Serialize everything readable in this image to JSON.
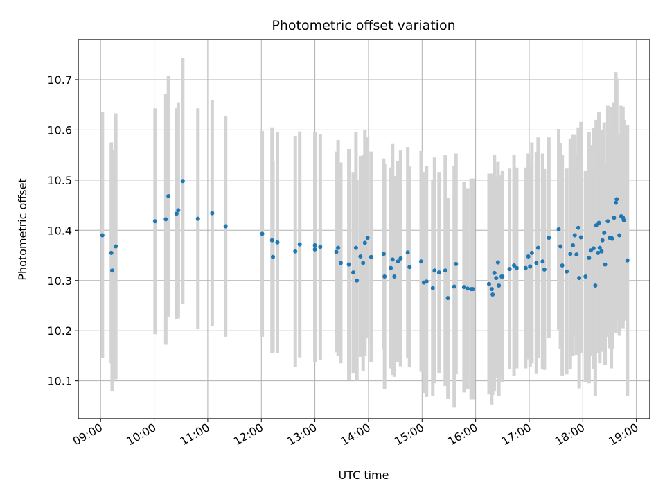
{
  "chart_data": {
    "type": "scatter",
    "title": "Photometric offset variation",
    "xlabel": "UTC time",
    "ylabel": "Photometric offset",
    "xlim": [
      "08:35",
      "19:15"
    ],
    "ylim": [
      10.025,
      10.78
    ],
    "x_ticks": [
      "09:00",
      "10:00",
      "11:00",
      "12:00",
      "13:00",
      "14:00",
      "15:00",
      "16:00",
      "17:00",
      "18:00",
      "19:00"
    ],
    "y_ticks": [
      10.1,
      10.2,
      10.3,
      10.4,
      10.5,
      10.6,
      10.7
    ],
    "grid": true,
    "colors": {
      "point": "#1f77b4",
      "errorbar": "#d3d3d3",
      "grid": "#b0b0b0"
    },
    "series": [
      {
        "x": [
          "09:02",
          "09:12",
          "09:13",
          "09:17",
          "10:01",
          "10:13",
          "10:16",
          "10:25",
          "10:27",
          "10:32",
          "10:49",
          "11:05",
          "11:20",
          "12:01",
          "12:12",
          "12:13",
          "12:18",
          "12:38",
          "12:43",
          "13:00",
          "13:00",
          "13:06",
          "13:24",
          "13:26",
          "13:29",
          "13:38",
          "13:43",
          "13:46",
          "13:47",
          "13:51",
          "13:54",
          "13:56",
          "13:59",
          "14:03",
          "14:17",
          "14:18",
          "14:25",
          "14:27",
          "14:29",
          "14:33",
          "14:36",
          "14:44",
          "14:46",
          "14:59",
          "15:02",
          "15:05",
          "15:12",
          "15:14",
          "15:19",
          "15:26",
          "15:29",
          "15:36",
          "15:38",
          "15:47",
          "15:51",
          "15:55",
          "15:57",
          "16:15",
          "16:18",
          "16:19",
          "16:21",
          "16:23",
          "16:25",
          "16:26",
          "16:29",
          "16:30",
          "16:38",
          "16:43",
          "16:46",
          "16:56",
          "16:59",
          "17:01",
          "17:03",
          "17:08",
          "17:10",
          "17:15",
          "17:17",
          "17:22",
          "17:33",
          "17:35",
          "17:37",
          "17:42",
          "17:46",
          "17:49",
          "17:51",
          "17:53",
          "17:55",
          "17:56",
          "17:58",
          "18:03",
          "18:07",
          "18:09",
          "18:12",
          "18:14",
          "18:15",
          "18:17",
          "18:18",
          "18:19",
          "18:21",
          "18:22",
          "18:24",
          "18:25",
          "18:28",
          "18:30",
          "18:32",
          "18:33",
          "18:35",
          "18:37",
          "18:38",
          "18:41",
          "18:43",
          "18:45",
          "18:46"
        ],
        "y": [
          10.39,
          10.355,
          10.32,
          10.368,
          10.418,
          10.422,
          10.468,
          10.433,
          10.44,
          10.498,
          10.423,
          10.434,
          10.408,
          10.393,
          10.38,
          10.347,
          10.376,
          10.358,
          10.372,
          10.362,
          10.37,
          10.367,
          10.357,
          10.365,
          10.335,
          10.332,
          10.316,
          10.365,
          10.3,
          10.348,
          10.335,
          10.375,
          10.385,
          10.347,
          10.353,
          10.308,
          10.325,
          10.342,
          10.308,
          10.338,
          10.344,
          10.356,
          10.327,
          10.338,
          10.296,
          10.298,
          10.285,
          10.32,
          10.316,
          10.32,
          10.265,
          10.288,
          10.333,
          10.287,
          10.284,
          10.283,
          10.283,
          10.293,
          10.283,
          10.272,
          10.315,
          10.305,
          10.336,
          10.29,
          10.308,
          10.308,
          10.323,
          10.33,
          10.325,
          10.325,
          10.348,
          10.328,
          10.355,
          10.335,
          10.365,
          10.338,
          10.322,
          10.385,
          10.402,
          10.368,
          10.33,
          10.318,
          10.353,
          10.37,
          10.39,
          10.352,
          10.405,
          10.305,
          10.386,
          10.308,
          10.345,
          10.36,
          10.364,
          10.29,
          10.41,
          10.355,
          10.415,
          10.365,
          10.358,
          10.38,
          10.395,
          10.332,
          10.418,
          10.385,
          10.385,
          10.383,
          10.425,
          10.455,
          10.462,
          10.39,
          10.428,
          10.425,
          10.42
        ],
        "yerr": [
          0.245,
          0.22,
          0.24,
          0.265,
          0.225,
          0.25,
          0.24,
          0.21,
          0.215,
          0.245,
          0.22,
          0.225,
          0.22,
          0.205,
          0.225,
          0.19,
          0.22,
          0.23,
          0.225,
          0.225,
          0.225,
          0.225,
          0.2,
          0.215,
          0.2,
          0.23,
          0.2,
          0.23,
          0.2,
          0.2,
          0.215,
          0.225,
          0.2,
          0.21,
          0.19,
          0.225,
          0.2,
          0.23,
          0.2,
          0.2,
          0.215,
          0.21,
          0.2,
          0.22,
          0.22,
          0.23,
          0.215,
          0.225,
          0.2,
          0.23,
          0.2,
          0.24,
          0.22,
          0.21,
          0.2,
          0.22,
          0.22,
          0.22,
          0.23,
          0.2,
          0.235,
          0.2,
          0.2,
          0.22,
          0.2,
          0.21,
          0.2,
          0.22,
          0.2,
          0.2,
          0.205,
          0.2,
          0.22,
          0.22,
          0.22,
          0.215,
          0.2,
          0.2,
          0.2,
          0.205,
          0.22,
          0.205,
          0.23,
          0.22,
          0.2,
          0.2,
          0.2,
          0.22,
          0.23,
          0.21,
          0.25,
          0.21,
          0.24,
          0.22,
          0.21,
          0.2,
          0.22,
          0.23,
          0.2,
          0.22,
          0.22,
          0.2,
          0.23,
          0.22,
          0.26,
          0.22,
          0.23,
          0.26,
          0.24,
          0.2,
          0.22,
          0.22,
          0.2
        ]
      },
      {
        "x": [
          "18:50"
        ],
        "y": [
          10.34
        ],
        "yerr": [
          0.27
        ]
      }
    ]
  }
}
